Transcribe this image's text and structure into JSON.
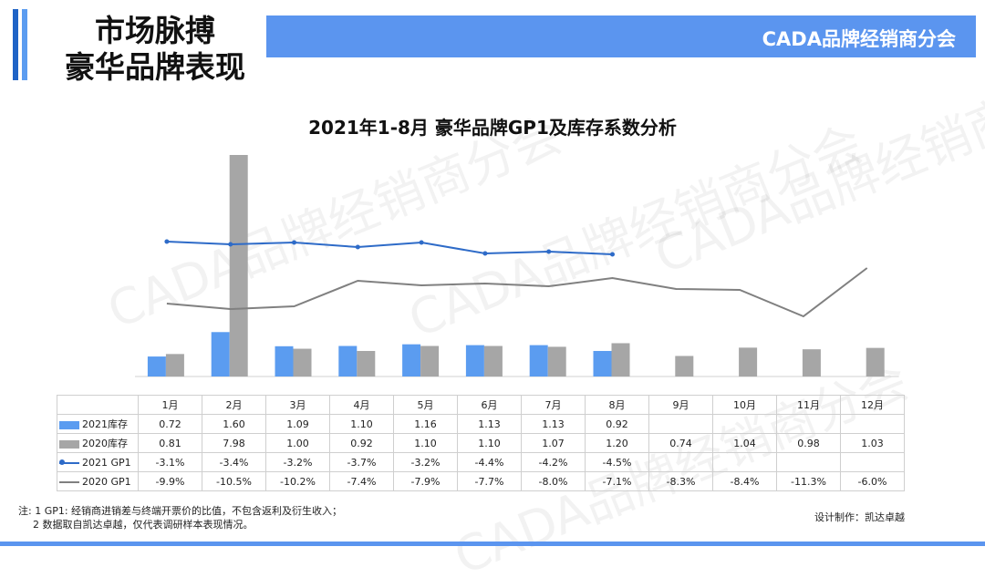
{
  "header": {
    "title_line1": "市场脉搏",
    "title_line2": "豪华品牌表现",
    "banner": "CADA品牌经销商分会"
  },
  "watermark": "CADA品牌经销商分会",
  "chart_data": {
    "type": "bar",
    "title": "2021年1-8月 豪华品牌GP1及库存系数分析",
    "categories": [
      "1月",
      "2月",
      "3月",
      "4月",
      "5月",
      "6月",
      "7月",
      "8月",
      "9月",
      "10月",
      "11月",
      "12月"
    ],
    "series": [
      {
        "name": "2021库存",
        "type": "bar",
        "color": "#5b9cf0",
        "values": [
          0.72,
          1.6,
          1.09,
          1.1,
          1.16,
          1.13,
          1.13,
          0.92,
          null,
          null,
          null,
          null
        ],
        "labels": [
          "0.72",
          "1.60",
          "1.09",
          "1.10",
          "1.16",
          "1.13",
          "1.13",
          "0.92",
          "",
          "",
          "",
          ""
        ]
      },
      {
        "name": "2020库存",
        "type": "bar",
        "color": "#a6a6a6",
        "values": [
          0.81,
          7.98,
          1.0,
          0.92,
          1.1,
          1.1,
          1.07,
          1.2,
          0.74,
          1.04,
          0.98,
          1.03
        ],
        "labels": [
          "0.81",
          "7.98",
          "1.00",
          "0.92",
          "1.10",
          "1.10",
          "1.07",
          "1.20",
          "0.74",
          "1.04",
          "0.98",
          "1.03"
        ]
      },
      {
        "name": "2021 GP1",
        "type": "line",
        "color": "#2e6bc8",
        "marker": true,
        "values": [
          -3.1,
          -3.4,
          -3.2,
          -3.7,
          -3.2,
          -4.4,
          -4.2,
          -4.5,
          null,
          null,
          null,
          null
        ],
        "labels": [
          "-3.1%",
          "-3.4%",
          "-3.2%",
          "-3.7%",
          "-3.2%",
          "-4.4%",
          "-4.2%",
          "-4.5%",
          "",
          "",
          "",
          ""
        ]
      },
      {
        "name": "2020 GP1",
        "type": "line",
        "color": "#808080",
        "marker": false,
        "values": [
          -9.9,
          -10.5,
          -10.2,
          -7.4,
          -7.9,
          -7.7,
          -8.0,
          -7.1,
          -8.3,
          -8.4,
          -11.3,
          -6.0
        ],
        "labels": [
          "-9.9%",
          "-10.5%",
          "-10.2%",
          "-7.4%",
          "-7.9%",
          "-7.7%",
          "-8.0%",
          "-7.1%",
          "-8.3%",
          "-8.4%",
          "-11.3%",
          "-6.0%"
        ]
      }
    ]
  },
  "notes": {
    "line1": "注: 1 GP1: 经销商进销差与终端开票价的比值，不包含返利及衍生收入；",
    "line2": "2 数据取自凯达卓越，仅代表调研样本表现情况。",
    "credit": "设计制作：凯达卓越"
  }
}
